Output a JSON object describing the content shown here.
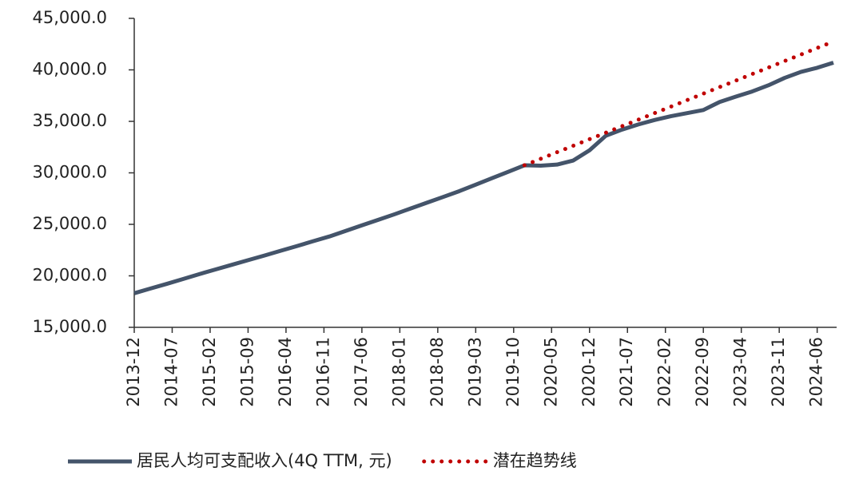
{
  "chart_data": {
    "type": "line",
    "x": [
      "2013-12",
      "2014-03",
      "2014-06",
      "2014-09",
      "2014-12",
      "2015-03",
      "2015-06",
      "2015-09",
      "2015-12",
      "2016-03",
      "2016-06",
      "2016-09",
      "2016-12",
      "2017-03",
      "2017-06",
      "2017-09",
      "2017-12",
      "2018-03",
      "2018-06",
      "2018-09",
      "2018-12",
      "2019-03",
      "2019-06",
      "2019-09",
      "2019-12",
      "2020-03",
      "2020-06",
      "2020-09",
      "2020-12",
      "2021-03",
      "2021-06",
      "2021-09",
      "2021-12",
      "2022-03",
      "2022-06",
      "2022-09",
      "2022-12",
      "2023-03",
      "2023-06",
      "2023-09",
      "2023-12",
      "2024-03",
      "2024-06",
      "2024-09"
    ],
    "series": [
      {
        "name": "居民人均可支配收入(4Q TTM, 元)",
        "color": "#44546a",
        "style": "solid",
        "values": [
          18311,
          18770,
          19220,
          19690,
          20167,
          20620,
          21070,
          21520,
          21966,
          22430,
          22890,
          23360,
          23821,
          24360,
          24900,
          25440,
          25974,
          26540,
          27100,
          27660,
          28228,
          28850,
          29480,
          30100,
          30733,
          30700,
          30800,
          31200,
          32189,
          33600,
          34200,
          34700,
          35128,
          35500,
          35800,
          36100,
          36883,
          37400,
          37900,
          38500,
          39218,
          39800,
          40200,
          40700
        ]
      },
      {
        "name": "潜在趋势线",
        "color": "#c00000",
        "style": "dotted",
        "values": [
          null,
          null,
          null,
          null,
          null,
          null,
          null,
          null,
          null,
          null,
          null,
          null,
          null,
          null,
          null,
          null,
          null,
          null,
          null,
          null,
          null,
          null,
          null,
          null,
          30733,
          31366,
          31998,
          32631,
          33263,
          33896,
          34528,
          35161,
          35793,
          36426,
          37058,
          37691,
          38323,
          38956,
          39588,
          40221,
          40853,
          41486,
          42118,
          42750
        ]
      }
    ],
    "xlim": [
      "2013-12",
      "2024-09"
    ],
    "xticks": [
      "2013-12",
      "2014-07",
      "2015-02",
      "2015-09",
      "2016-04",
      "2016-11",
      "2017-06",
      "2018-01",
      "2018-08",
      "2019-03",
      "2019-10",
      "2020-05",
      "2020-12",
      "2021-07",
      "2022-02",
      "2022-09",
      "2023-04",
      "2023-11",
      "2024-06"
    ],
    "ylim": [
      15000,
      45000
    ],
    "yticks": [
      {
        "value": 15000,
        "label": "15,000.0"
      },
      {
        "value": 20000,
        "label": "20,000.0"
      },
      {
        "value": 25000,
        "label": "25,000.0"
      },
      {
        "value": 30000,
        "label": "30,000.0"
      },
      {
        "value": 35000,
        "label": "35,000.0"
      },
      {
        "value": 40000,
        "label": "40,000.0"
      },
      {
        "value": 45000,
        "label": "45,000.0"
      }
    ],
    "legend": "bottom"
  }
}
